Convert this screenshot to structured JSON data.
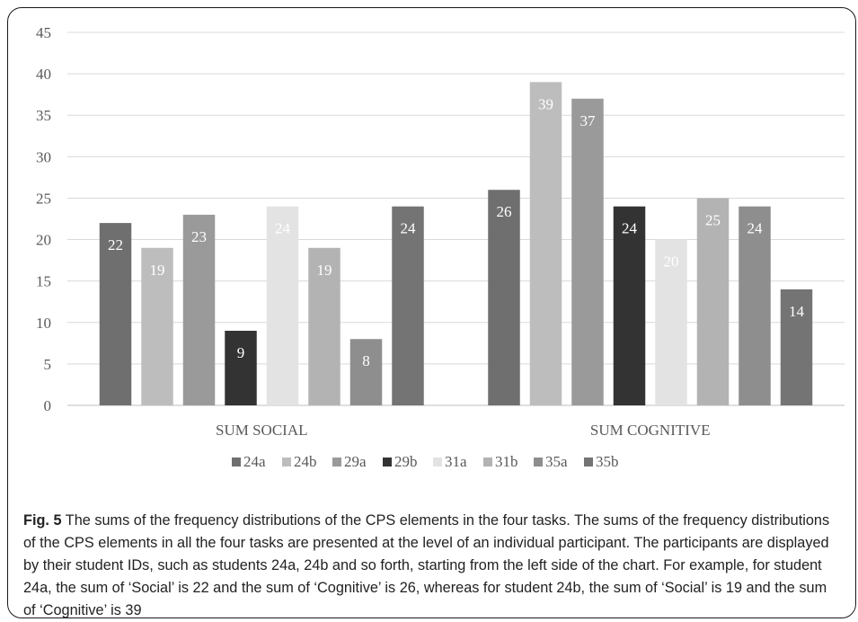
{
  "chart_data": {
    "type": "bar",
    "categories": [
      "SUM SOCIAL",
      "SUM COGNITIVE"
    ],
    "series": [
      {
        "name": "24a",
        "color": "#6f6f6f",
        "values": [
          22,
          26
        ],
        "label_color": "#ffffff"
      },
      {
        "name": "24b",
        "color": "#bdbdbd",
        "values": [
          19,
          39
        ],
        "label_color": "#ffffff"
      },
      {
        "name": "29a",
        "color": "#9a9a9a",
        "values": [
          23,
          37
        ],
        "label_color": "#ffffff"
      },
      {
        "name": "29b",
        "color": "#333333",
        "values": [
          9,
          24
        ],
        "label_color": "#ffffff"
      },
      {
        "name": "31a",
        "color": "#e3e3e3",
        "values": [
          24,
          20
        ],
        "label_color": "#ffffff"
      },
      {
        "name": "31b",
        "color": "#b3b3b3",
        "values": [
          19,
          25
        ],
        "label_color": "#ffffff"
      },
      {
        "name": "35a",
        "color": "#8e8e8e",
        "values": [
          8,
          24
        ],
        "label_color": "#ffffff"
      },
      {
        "name": "35b",
        "color": "#747474",
        "values": [
          24,
          14
        ],
        "label_color": "#ffffff"
      }
    ],
    "yticks": [
      0,
      5,
      10,
      15,
      20,
      25,
      30,
      35,
      40,
      45
    ],
    "ylim": [
      0,
      45
    ],
    "grid": true,
    "legend_position": "bottom"
  },
  "caption": {
    "label": "Fig. 5",
    "text": " The sums of the frequency distributions of the CPS elements in the four tasks. The sums of the frequency distributions of the CPS elements in all the four tasks are presented at the level of an individual participant. The participants are displayed by their student IDs, such as students 24a, 24b and so forth, starting from the left side of the chart. For example, for student 24a, the sum of ‘Social’ is 22 and the sum of ‘Cognitive’ is 26, whereas for student 24b, the sum of ‘Social’ is 19 and the sum of ‘Cognitive’ is 39"
  }
}
